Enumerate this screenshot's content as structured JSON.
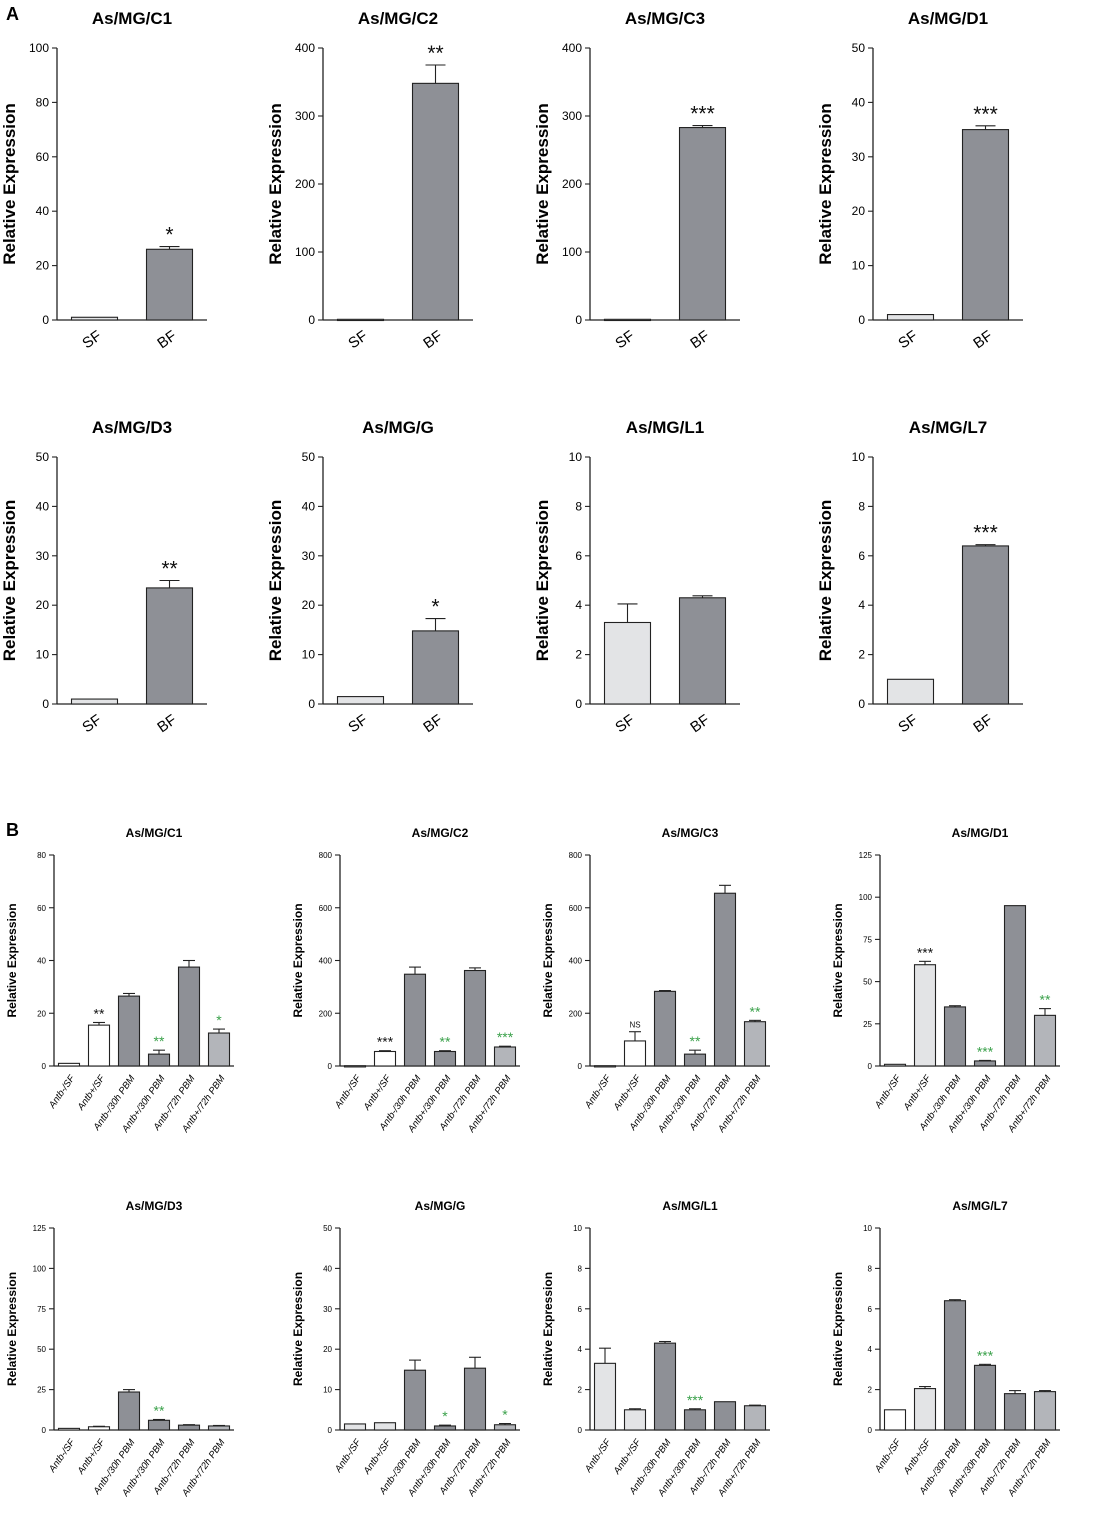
{
  "figure": {
    "panel_labels": {
      "a": "A",
      "b": "B"
    },
    "ylabel": "Relative Expression",
    "colors": {
      "axis": "#222222",
      "bar_dark": "#8e9096",
      "bar_mid": "#b3b5ba",
      "bar_light": "#e3e4e6",
      "bar_white": "#ffffff",
      "sig_black": "#111111",
      "sig_green": "#3aa14a"
    }
  },
  "chart_data": [
    {
      "panel": "A",
      "type": "bar",
      "title": "As/MG/C1",
      "xlabel": "",
      "ylabel": "Relative Expression",
      "categories": [
        "SF",
        "BF"
      ],
      "ylim": [
        0,
        100
      ],
      "yticks": [
        0,
        20,
        40,
        60,
        80,
        100
      ],
      "values": [
        1,
        26
      ],
      "errors": [
        0,
        1
      ],
      "fills": [
        "light",
        "dark"
      ],
      "significance": [
        "",
        "*"
      ],
      "sig_colors": [
        "black",
        "black"
      ]
    },
    {
      "panel": "A",
      "type": "bar",
      "title": "As/MG/C2",
      "xlabel": "",
      "ylabel": "Relative Expression",
      "categories": [
        "SF",
        "BF"
      ],
      "ylim": [
        0,
        400
      ],
      "yticks": [
        0,
        100,
        200,
        300,
        400
      ],
      "values": [
        1,
        348
      ],
      "errors": [
        0,
        27
      ],
      "fills": [
        "light",
        "dark"
      ],
      "significance": [
        "",
        "**"
      ],
      "sig_colors": [
        "black",
        "black"
      ]
    },
    {
      "panel": "A",
      "type": "bar",
      "title": "As/MG/C3",
      "xlabel": "",
      "ylabel": "Relative Expression",
      "categories": [
        "SF",
        "BF"
      ],
      "ylim": [
        0,
        400
      ],
      "yticks": [
        0,
        100,
        200,
        300,
        400
      ],
      "values": [
        1,
        283
      ],
      "errors": [
        0,
        3
      ],
      "fills": [
        "light",
        "dark"
      ],
      "significance": [
        "",
        "***"
      ],
      "sig_colors": [
        "black",
        "black"
      ]
    },
    {
      "panel": "A",
      "type": "bar",
      "title": "As/MG/D1",
      "xlabel": "",
      "ylabel": "Relative Expression",
      "categories": [
        "SF",
        "BF"
      ],
      "ylim": [
        0,
        50
      ],
      "yticks": [
        0,
        10,
        20,
        30,
        40,
        50
      ],
      "values": [
        1,
        35
      ],
      "errors": [
        0,
        0.7
      ],
      "fills": [
        "light",
        "dark"
      ],
      "significance": [
        "",
        "***"
      ],
      "sig_colors": [
        "black",
        "black"
      ]
    },
    {
      "panel": "A",
      "type": "bar",
      "title": "As/MG/D3",
      "xlabel": "",
      "ylabel": "Relative Expression",
      "categories": [
        "SF",
        "BF"
      ],
      "ylim": [
        0,
        50
      ],
      "yticks": [
        0,
        10,
        20,
        30,
        40,
        50
      ],
      "values": [
        1,
        23.5
      ],
      "errors": [
        0,
        1.5
      ],
      "fills": [
        "light",
        "dark"
      ],
      "significance": [
        "",
        "**"
      ],
      "sig_colors": [
        "black",
        "black"
      ]
    },
    {
      "panel": "A",
      "type": "bar",
      "title": "As/MG/G",
      "xlabel": "",
      "ylabel": "Relative Expression",
      "categories": [
        "SF",
        "BF"
      ],
      "ylim": [
        0,
        50
      ],
      "yticks": [
        0,
        10,
        20,
        30,
        40,
        50
      ],
      "values": [
        1.5,
        14.8
      ],
      "errors": [
        0,
        2.5
      ],
      "fills": [
        "light",
        "dark"
      ],
      "significance": [
        "",
        "*"
      ],
      "sig_colors": [
        "black",
        "black"
      ]
    },
    {
      "panel": "A",
      "type": "bar",
      "title": "As/MG/L1",
      "xlabel": "",
      "ylabel": "Relative Expression",
      "categories": [
        "SF",
        "BF"
      ],
      "ylim": [
        0,
        10
      ],
      "yticks": [
        0,
        2,
        4,
        6,
        8,
        10
      ],
      "values": [
        3.3,
        4.3
      ],
      "errors": [
        0.75,
        0.08
      ],
      "fills": [
        "light",
        "dark"
      ],
      "significance": [
        "",
        ""
      ],
      "sig_colors": [
        "black",
        "black"
      ]
    },
    {
      "panel": "A",
      "type": "bar",
      "title": "As/MG/L7",
      "xlabel": "",
      "ylabel": "Relative Expression",
      "categories": [
        "SF",
        "BF"
      ],
      "ylim": [
        0,
        10
      ],
      "yticks": [
        0,
        2,
        4,
        6,
        8,
        10
      ],
      "values": [
        1,
        6.4
      ],
      "errors": [
        0,
        0.05
      ],
      "fills": [
        "light",
        "dark"
      ],
      "significance": [
        "",
        "***"
      ],
      "sig_colors": [
        "black",
        "black"
      ]
    },
    {
      "panel": "B",
      "type": "bar",
      "title": "As/MG/C1",
      "xlabel": "",
      "ylabel": "Relative Expression",
      "categories": [
        "Antb-/SF",
        "Antb+/SF",
        "Antb-/30h PBM",
        "Antb+/30h PBM",
        "Antb-/72h PBM",
        "Antb+/72h PBM"
      ],
      "ylim": [
        0,
        80
      ],
      "yticks": [
        0,
        20,
        40,
        60,
        80
      ],
      "values": [
        1,
        15.5,
        26.5,
        4.5,
        37.5,
        12.5
      ],
      "errors": [
        0,
        1,
        1,
        1.5,
        2.5,
        1.5
      ],
      "fills": [
        "white",
        "white",
        "dark",
        "dark",
        "dark",
        "mid"
      ],
      "significance": [
        "",
        "**",
        "",
        "**",
        "",
        "*"
      ],
      "sig_colors": [
        "black",
        "black",
        "black",
        "green",
        "black",
        "green"
      ]
    },
    {
      "panel": "B",
      "type": "bar",
      "title": "As/MG/C2",
      "xlabel": "",
      "ylabel": "Relative Expression",
      "categories": [
        "Antb-/SF",
        "Antb+/SF",
        "Antb-/30h PBM",
        "Antb+/30h PBM",
        "Antb-/72h PBM",
        "Antb+/72h PBM"
      ],
      "ylim": [
        0,
        800
      ],
      "yticks": [
        0,
        200,
        400,
        600,
        800
      ],
      "values": [
        1,
        55,
        348,
        55,
        362,
        72
      ],
      "errors": [
        0,
        3,
        27,
        3,
        10,
        3
      ],
      "fills": [
        "white",
        "white",
        "dark",
        "dark",
        "dark",
        "mid"
      ],
      "significance": [
        "",
        "***",
        "",
        "**",
        "",
        "***"
      ],
      "sig_colors": [
        "black",
        "black",
        "black",
        "green",
        "black",
        "green"
      ]
    },
    {
      "panel": "B",
      "type": "bar",
      "title": "As/MG/C3",
      "xlabel": "",
      "ylabel": "Relative Expression",
      "categories": [
        "Antb-/SF",
        "Antb+/SF",
        "Antb-/30h PBM",
        "Antb+/30h PBM",
        "Antb-/72h PBM",
        "Antb+/72h PBM"
      ],
      "ylim": [
        0,
        800
      ],
      "yticks": [
        0,
        200,
        400,
        600,
        800
      ],
      "values": [
        1,
        95,
        283,
        45,
        655,
        168
      ],
      "errors": [
        0,
        35,
        3,
        15,
        30,
        5
      ],
      "fills": [
        "white",
        "white",
        "dark",
        "dark",
        "dark",
        "mid"
      ],
      "significance": [
        "",
        "NS",
        "",
        "**",
        "",
        "**"
      ],
      "sig_colors": [
        "black",
        "black",
        "black",
        "green",
        "black",
        "green"
      ]
    },
    {
      "panel": "B",
      "type": "bar",
      "title": "As/MG/D1",
      "xlabel": "",
      "ylabel": "Relative Expression",
      "categories": [
        "Antb-/SF",
        "Antb+/SF",
        "Antb-/30h PBM",
        "Antb+/30h PBM",
        "Antb-/72h PBM",
        "Antb+/72h PBM"
      ],
      "ylim": [
        0,
        125
      ],
      "yticks": [
        0,
        25,
        50,
        75,
        100,
        125
      ],
      "values": [
        1,
        60,
        35,
        3,
        95,
        30
      ],
      "errors": [
        0,
        2,
        0.7,
        0.3,
        0,
        4
      ],
      "fills": [
        "light",
        "light",
        "dark",
        "dark",
        "dark",
        "mid"
      ],
      "significance": [
        "",
        "***",
        "",
        "***",
        "",
        "**"
      ],
      "sig_colors": [
        "black",
        "black",
        "black",
        "green",
        "black",
        "green"
      ]
    },
    {
      "panel": "B",
      "type": "bar",
      "title": "As/MG/D3",
      "xlabel": "",
      "ylabel": "Relative Expression",
      "categories": [
        "Antb-/SF",
        "Antb+/SF",
        "Antb-/30h PBM",
        "Antb+/30h PBM",
        "Antb-/72h PBM",
        "Antb+/72h PBM"
      ],
      "ylim": [
        0,
        125
      ],
      "yticks": [
        0,
        25,
        50,
        75,
        100,
        125
      ],
      "values": [
        1,
        2,
        23.5,
        6,
        3,
        2.5
      ],
      "errors": [
        0,
        0.3,
        1.5,
        0.5,
        0.3,
        0.3
      ],
      "fills": [
        "white",
        "white",
        "dark",
        "dark",
        "dark",
        "mid"
      ],
      "significance": [
        "",
        "",
        "",
        "**",
        "",
        ""
      ],
      "sig_colors": [
        "black",
        "black",
        "black",
        "green",
        "black",
        "black"
      ]
    },
    {
      "panel": "B",
      "type": "bar",
      "title": "As/MG/G",
      "xlabel": "",
      "ylabel": "Relative Expression",
      "categories": [
        "Antb-/SF",
        "Antb+/SF",
        "Antb-/30h PBM",
        "Antb+/30h PBM",
        "Antb-/72h PBM",
        "Antb+/72h PBM"
      ],
      "ylim": [
        0,
        50
      ],
      "yticks": [
        0,
        10,
        20,
        30,
        40,
        50
      ],
      "values": [
        1.5,
        1.8,
        14.8,
        1,
        15.3,
        1.3
      ],
      "errors": [
        0,
        0,
        2.5,
        0.2,
        2.7,
        0.3
      ],
      "fills": [
        "light",
        "light",
        "dark",
        "dark",
        "dark",
        "mid"
      ],
      "significance": [
        "",
        "",
        "",
        "*",
        "",
        "*"
      ],
      "sig_colors": [
        "black",
        "black",
        "black",
        "green",
        "black",
        "green"
      ]
    },
    {
      "panel": "B",
      "type": "bar",
      "title": "As/MG/L1",
      "xlabel": "",
      "ylabel": "Relative Expression",
      "categories": [
        "Antb-/SF",
        "Antb+/SF",
        "Antb-/30h PBM",
        "Antb+/30h PBM",
        "Antb-/72h PBM",
        "Antb+/72h PBM"
      ],
      "ylim": [
        0,
        10
      ],
      "yticks": [
        0,
        2,
        4,
        6,
        8,
        10
      ],
      "values": [
        3.3,
        1,
        4.3,
        1,
        1.4,
        1.2
      ],
      "errors": [
        0.75,
        0.05,
        0.08,
        0.05,
        0,
        0.03
      ],
      "fills": [
        "light",
        "light",
        "dark",
        "dark",
        "dark",
        "mid"
      ],
      "significance": [
        "",
        "",
        "",
        "***",
        "",
        ""
      ],
      "sig_colors": [
        "black",
        "black",
        "black",
        "green",
        "black",
        "black"
      ]
    },
    {
      "panel": "B",
      "type": "bar",
      "title": "As/MG/L7",
      "xlabel": "",
      "ylabel": "Relative Expression",
      "categories": [
        "Antb-/SF",
        "Antb+/SF",
        "Antb-/30h PBM",
        "Antb+/30h PBM",
        "Antb-/72h PBM",
        "Antb+/72h PBM"
      ],
      "ylim": [
        0,
        10
      ],
      "yticks": [
        0,
        2,
        4,
        6,
        8,
        10
      ],
      "values": [
        1,
        2.05,
        6.4,
        3.2,
        1.8,
        1.9
      ],
      "errors": [
        0,
        0.1,
        0.05,
        0.05,
        0.15,
        0.05
      ],
      "fills": [
        "white",
        "light",
        "dark",
        "dark",
        "dark",
        "mid"
      ],
      "significance": [
        "",
        "",
        "",
        "***",
        "",
        ""
      ],
      "sig_colors": [
        "black",
        "black",
        "black",
        "green",
        "black",
        "black"
      ]
    }
  ]
}
